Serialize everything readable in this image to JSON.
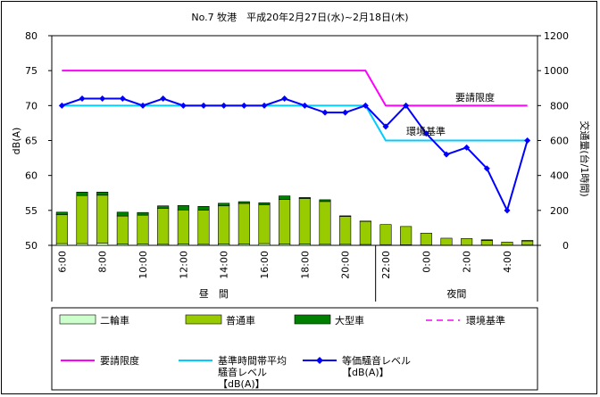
{
  "chart_data": {
    "type": "bar",
    "title": "No.7 牧港　平成20年2月27日(水)~2月18日(木)",
    "ylabel_left": "dB(A)",
    "ylabel_right": "交通量(台/1時間)",
    "ylim_left": [
      50,
      80
    ],
    "yticks_left": [
      "50",
      "55",
      "60",
      "65",
      "70",
      "75",
      "80"
    ],
    "ylim_right": [
      0,
      1200
    ],
    "yticks_right": [
      "0",
      "200",
      "400",
      "600",
      "800",
      "1000",
      "1200"
    ],
    "categories": [
      "6:00",
      "7:00",
      "8:00",
      "9:00",
      "10:00",
      "11:00",
      "12:00",
      "13:00",
      "14:00",
      "15:00",
      "16:00",
      "17:00",
      "18:00",
      "19:00",
      "20:00",
      "21:00",
      "22:00",
      "23:00",
      "0:00",
      "1:00",
      "2:00",
      "3:00",
      "4:00",
      "5:00"
    ],
    "x_tick_labels": [
      "6:00",
      "8:00",
      "10:00",
      "12:00",
      "14:00",
      "16:00",
      "18:00",
      "20:00",
      "22:00",
      "0:00",
      "2:00",
      "4:00"
    ],
    "periods": [
      {
        "label": "昼　間",
        "from": 0,
        "to": 15
      },
      {
        "label": "夜間",
        "from": 16,
        "to": 23
      }
    ],
    "series": [
      {
        "name": "二輪車",
        "kind": "bar",
        "color": "#ccffcc",
        "values": [
          10,
          10,
          12,
          8,
          8,
          6,
          8,
          6,
          8,
          8,
          10,
          8,
          8,
          6,
          6,
          5,
          4,
          3,
          2,
          1,
          1,
          1,
          1,
          2
        ]
      },
      {
        "name": "普通車",
        "kind": "bar",
        "color": "#99cc00",
        "values": [
          165,
          275,
          275,
          160,
          165,
          205,
          195,
          195,
          218,
          232,
          222,
          255,
          260,
          245,
          160,
          132,
          115,
          105,
          68,
          40,
          38,
          26,
          18,
          23
        ]
      },
      {
        "name": "大型車",
        "kind": "bar",
        "color": "#008000",
        "values": [
          15,
          20,
          18,
          22,
          15,
          15,
          25,
          22,
          15,
          10,
          12,
          20,
          6,
          10,
          3,
          2,
          0,
          0,
          0,
          0,
          0,
          5,
          0,
          3
        ]
      },
      {
        "name": "環境基準",
        "kind": "line",
        "color": "#ff00ff",
        "values": [
          70,
          70,
          70,
          70,
          70,
          70,
          70,
          70,
          70,
          70,
          70,
          70,
          70,
          70,
          70,
          70,
          65,
          65,
          65,
          65,
          65,
          65,
          65,
          65
        ]
      },
      {
        "name": "要請限度",
        "kind": "line",
        "color": "#ff00ff",
        "values": [
          75,
          75,
          75,
          75,
          75,
          75,
          75,
          75,
          75,
          75,
          75,
          75,
          75,
          75,
          75,
          75,
          70,
          70,
          70,
          70,
          70,
          70,
          70,
          70
        ]
      },
      {
        "name": "基準時間帯平均騒音レベル【dB(A)】",
        "kind": "line",
        "color": "#00ccff",
        "values": [
          70,
          70,
          70,
          70,
          70,
          70,
          70,
          70,
          70,
          70,
          70,
          70,
          70,
          70,
          70,
          70,
          65,
          65,
          65,
          65,
          65,
          65,
          65,
          65
        ]
      },
      {
        "name": "等価騒音レベル【dB(A)】",
        "kind": "line",
        "color": "#0000ff",
        "values": [
          70,
          71,
          71,
          71,
          70,
          71,
          70,
          70,
          70,
          70,
          70,
          71,
          70,
          69,
          69,
          70,
          67,
          70,
          66,
          63,
          64,
          61,
          55,
          65
        ]
      }
    ],
    "annotations": [
      "要請限度",
      "環境基準"
    ],
    "legend": {
      "position": "bottom",
      "items": [
        {
          "label": "二輪車"
        },
        {
          "label": "普通車"
        },
        {
          "label": "大型車"
        },
        {
          "label": "環境基準"
        },
        {
          "label": "要請限度"
        },
        {
          "label": "基準時間帯平均\n騒音レベル\n【dB(A)】"
        },
        {
          "label": "等価騒音レベル\n【dB(A)】"
        }
      ]
    },
    "grid": false
  }
}
